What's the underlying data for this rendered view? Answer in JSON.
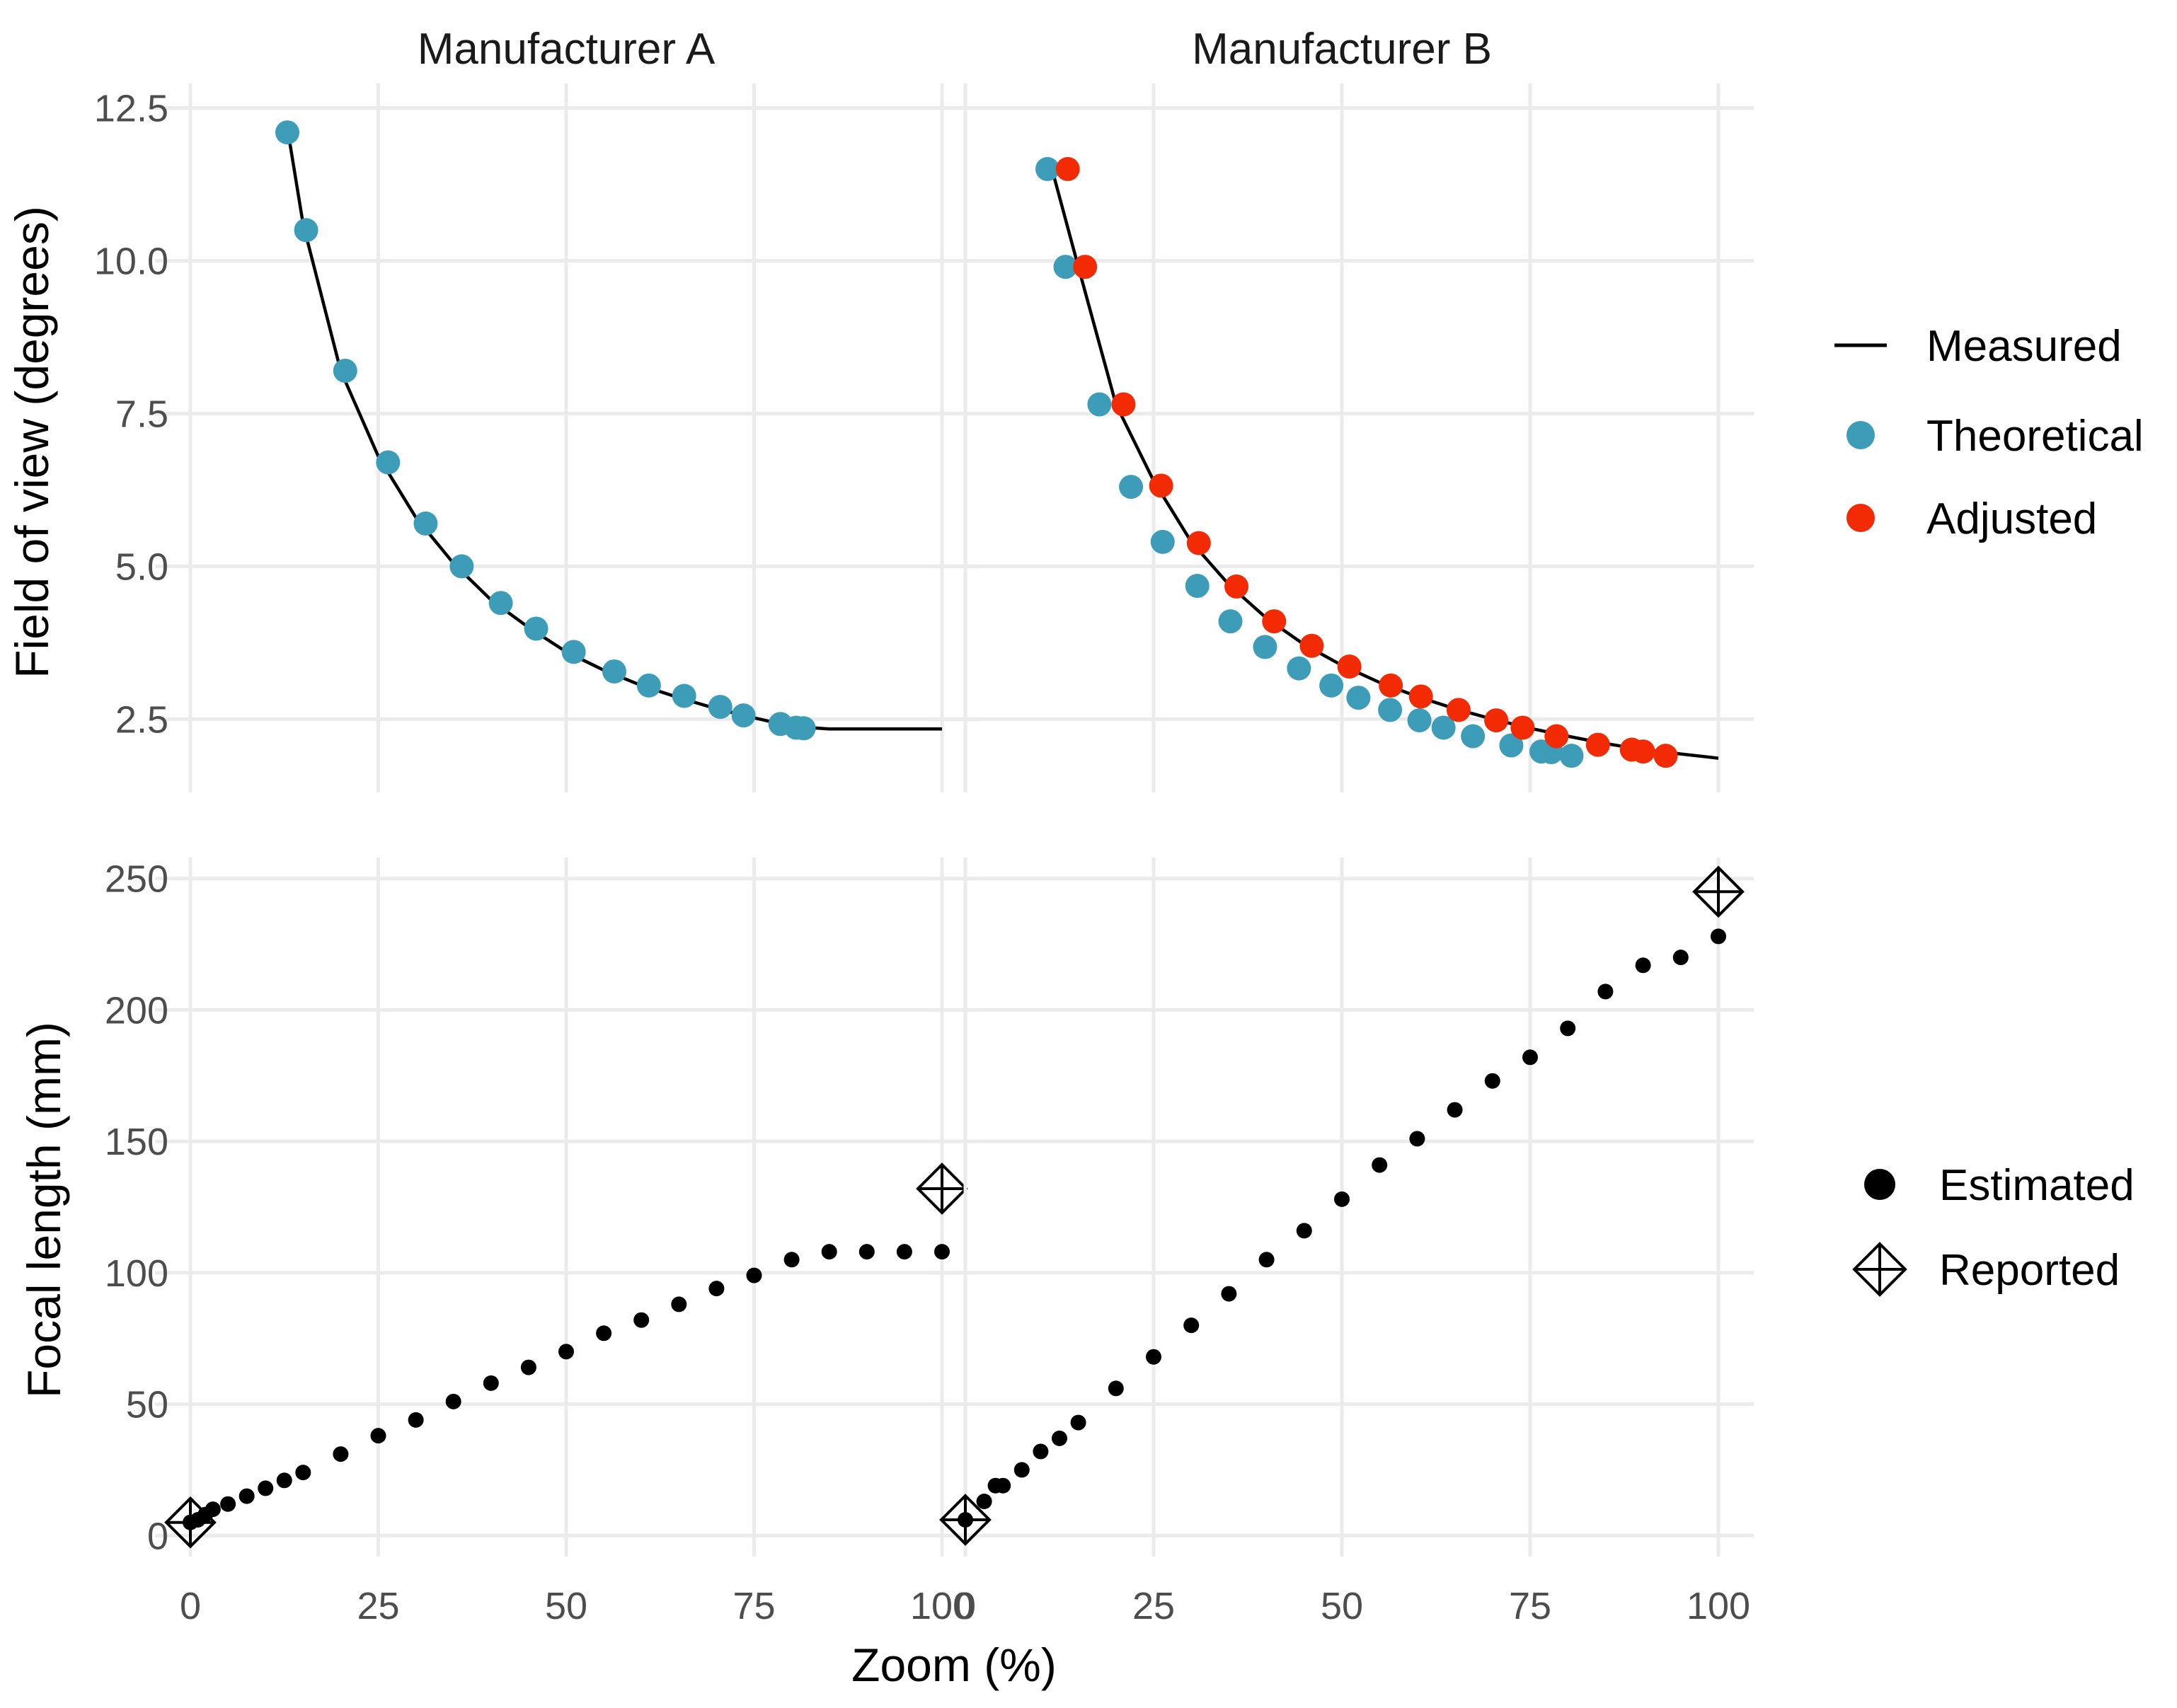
{
  "chart_data": {
    "type": "scatter",
    "facets": {
      "columns": [
        "Manufacturer A",
        "Manufacturer B"
      ],
      "rows": [
        "Field of view (degrees)",
        "Focal length (mm)"
      ]
    },
    "xlabel": "Zoom (%)",
    "xlim": [
      0,
      100
    ],
    "xticks": [
      "0",
      "25",
      "50",
      "75",
      "100"
    ],
    "xtick_values": [
      0,
      25,
      50,
      75,
      100
    ],
    "panels": {
      "fov": {
        "ylabel": "Field of view (degrees)",
        "ylim": [
          1.3,
          12.9
        ],
        "yticks": [
          "2.5",
          "5.0",
          "7.5",
          "10.0",
          "12.5"
        ],
        "ytick_values": [
          2.5,
          5.0,
          7.5,
          10.0,
          12.5
        ],
        "A": {
          "measured": [
            [
              13,
              12.1
            ],
            [
              15,
              10.6
            ],
            [
              20,
              8.2
            ],
            [
              25,
              6.8
            ],
            [
              30,
              5.8
            ],
            [
              35,
              5.05
            ],
            [
              40,
              4.45
            ],
            [
              45,
              4.0
            ],
            [
              50,
              3.6
            ],
            [
              55,
              3.3
            ],
            [
              60,
              3.05
            ],
            [
              65,
              2.85
            ],
            [
              70,
              2.67
            ],
            [
              75,
              2.52
            ],
            [
              80,
              2.38
            ],
            [
              85,
              2.34
            ],
            [
              90,
              2.34
            ],
            [
              100,
              2.34
            ]
          ],
          "theoretical": [
            [
              12.9,
              12.1
            ],
            [
              15.4,
              10.5
            ],
            [
              20.6,
              8.2
            ],
            [
              26.3,
              6.7
            ],
            [
              31.3,
              5.7
            ],
            [
              36.1,
              5.0
            ],
            [
              41.3,
              4.4
            ],
            [
              46,
              3.98
            ],
            [
              51,
              3.6
            ],
            [
              56.4,
              3.28
            ],
            [
              61,
              3.05
            ],
            [
              65.7,
              2.88
            ],
            [
              70.5,
              2.7
            ],
            [
              73.6,
              2.56
            ],
            [
              78.5,
              2.42
            ],
            [
              80.6,
              2.36
            ],
            [
              81.6,
              2.35
            ]
          ]
        },
        "B": {
          "measured": [
            [
              11.5,
              11.5
            ],
            [
              15,
              9.9
            ],
            [
              20,
              7.65
            ],
            [
              25,
              6.4
            ],
            [
              30,
              5.4
            ],
            [
              35,
              4.7
            ],
            [
              40,
              4.15
            ],
            [
              45,
              3.72
            ],
            [
              50,
              3.38
            ],
            [
              55,
              3.1
            ],
            [
              60,
              2.87
            ],
            [
              65,
              2.67
            ],
            [
              70,
              2.5
            ],
            [
              75,
              2.35
            ],
            [
              80,
              2.22
            ],
            [
              85,
              2.1
            ],
            [
              90,
              2.0
            ],
            [
              95,
              1.93
            ],
            [
              100,
              1.86
            ]
          ],
          "theoretical": [
            [
              10.9,
              11.5
            ],
            [
              13.3,
              9.9
            ],
            [
              17.8,
              7.65
            ],
            [
              22,
              6.3
            ],
            [
              26.2,
              5.4
            ],
            [
              30.8,
              4.68
            ],
            [
              35.2,
              4.1
            ],
            [
              39.8,
              3.68
            ],
            [
              44.3,
              3.33
            ],
            [
              48.6,
              3.05
            ],
            [
              52.2,
              2.85
            ],
            [
              56.4,
              2.65
            ],
            [
              60.3,
              2.48
            ],
            [
              63.5,
              2.36
            ],
            [
              67.4,
              2.22
            ],
            [
              72.5,
              2.07
            ],
            [
              76.5,
              1.97
            ],
            [
              77.8,
              1.96
            ],
            [
              80.5,
              1.9
            ]
          ],
          "adjusted": [
            [
              13.6,
              11.5
            ],
            [
              15.9,
              9.9
            ],
            [
              21,
              7.65
            ],
            [
              26,
              6.32
            ],
            [
              31,
              5.38
            ],
            [
              36,
              4.67
            ],
            [
              41,
              4.1
            ],
            [
              46,
              3.7
            ],
            [
              51,
              3.36
            ],
            [
              56.5,
              3.05
            ],
            [
              60.5,
              2.87
            ],
            [
              65.5,
              2.65
            ],
            [
              70.5,
              2.48
            ],
            [
              74,
              2.36
            ],
            [
              78.5,
              2.22
            ],
            [
              84,
              2.08
            ],
            [
              88.5,
              2.0
            ],
            [
              90,
              1.97
            ],
            [
              93,
              1.9
            ]
          ]
        }
      },
      "focal": {
        "ylabel": "Focal length (mm)",
        "ylim": [
          -8,
          258
        ],
        "yticks": [
          "0",
          "50",
          "100",
          "150",
          "200",
          "250"
        ],
        "ytick_values": [
          0,
          50,
          100,
          150,
          200,
          250
        ],
        "A": {
          "estimated": [
            [
              0,
              5
            ],
            [
              1,
              6
            ],
            [
              2,
              8
            ],
            [
              3,
              10
            ],
            [
              5,
              12
            ],
            [
              7.5,
              15
            ],
            [
              10,
              18
            ],
            [
              12.5,
              21
            ],
            [
              15,
              24
            ],
            [
              20,
              31
            ],
            [
              25,
              38
            ],
            [
              30,
              44
            ],
            [
              35,
              51
            ],
            [
              40,
              58
            ],
            [
              45,
              64
            ],
            [
              50,
              70
            ],
            [
              55,
              77
            ],
            [
              60,
              82
            ],
            [
              65,
              88
            ],
            [
              70,
              94
            ],
            [
              75,
              99
            ],
            [
              80,
              105
            ],
            [
              85,
              108
            ],
            [
              90,
              108
            ],
            [
              95,
              108
            ],
            [
              100,
              108
            ]
          ],
          "reported": [
            [
              0,
              5
            ],
            [
              100,
              132
            ]
          ]
        },
        "B": {
          "estimated": [
            [
              0,
              6
            ],
            [
              2.5,
              13
            ],
            [
              4,
              19
            ],
            [
              5,
              19
            ],
            [
              7.5,
              25
            ],
            [
              10,
              32
            ],
            [
              12.5,
              37
            ],
            [
              15,
              43
            ],
            [
              20,
              56
            ],
            [
              25,
              68
            ],
            [
              30,
              80
            ],
            [
              35,
              92
            ],
            [
              40,
              105
            ],
            [
              45,
              116
            ],
            [
              50,
              128
            ],
            [
              55,
              141
            ],
            [
              60,
              151
            ],
            [
              65,
              162
            ],
            [
              70,
              173
            ],
            [
              75,
              182
            ],
            [
              80,
              193
            ],
            [
              85,
              207
            ],
            [
              90,
              217
            ],
            [
              95,
              220
            ],
            [
              100,
              228
            ]
          ],
          "reported": [
            [
              0,
              6
            ],
            [
              100,
              245
            ]
          ]
        }
      }
    },
    "legends": {
      "top": [
        "Measured",
        "Theoretical",
        "Adjusted"
      ],
      "bottom": [
        "Estimated",
        "Reported"
      ]
    },
    "colors": {
      "measured": "#000000",
      "theoretical": "#3d9db9",
      "adjusted": "#f22b05",
      "estimated": "#000000",
      "grid": "#ebebeb"
    }
  }
}
